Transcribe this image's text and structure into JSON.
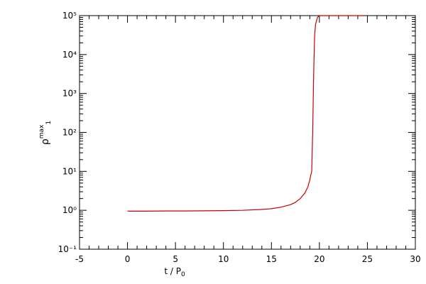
{
  "chart_data": {
    "type": "line",
    "xlabel": {
      "base": "t / P",
      "sub": "0"
    },
    "ylabel": {
      "base": "ρ",
      "sup": "max",
      "sub": "1"
    },
    "x": [
      0,
      2,
      4,
      6,
      8,
      10,
      12,
      14,
      15,
      16,
      17,
      17.5,
      18,
      18.5,
      18.8,
      19.0,
      19.1,
      19.2,
      19.3,
      19.4,
      19.45,
      19.5,
      19.6,
      19.8,
      20,
      21,
      22,
      23,
      24,
      24.7
    ],
    "series": [
      {
        "color": "#cc0000",
        "values": [
          0.95,
          0.95,
          0.96,
          0.96,
          0.97,
          0.98,
          1.0,
          1.05,
          1.1,
          1.2,
          1.4,
          1.6,
          2.0,
          2.8,
          4,
          6,
          8,
          10,
          100,
          3000,
          10000,
          30000,
          60000,
          90000,
          100000,
          100000,
          100000,
          100000,
          100000,
          100000
        ]
      }
    ],
    "xlim": [
      -5,
      30
    ],
    "xticks": [
      -5,
      0,
      5,
      10,
      15,
      20,
      25,
      30
    ],
    "ylim": [
      0.1,
      100000
    ],
    "ylog": true,
    "yticks": [
      {
        "value": 0.1,
        "label": "10⁻¹"
      },
      {
        "value": 1,
        "label": "10⁰"
      },
      {
        "value": 10,
        "label": "10¹"
      },
      {
        "value": 100,
        "label": "10²"
      },
      {
        "value": 1000,
        "label": "10³"
      },
      {
        "value": 10000,
        "label": "10⁴"
      },
      {
        "value": 100000,
        "label": "10⁵"
      }
    ]
  }
}
